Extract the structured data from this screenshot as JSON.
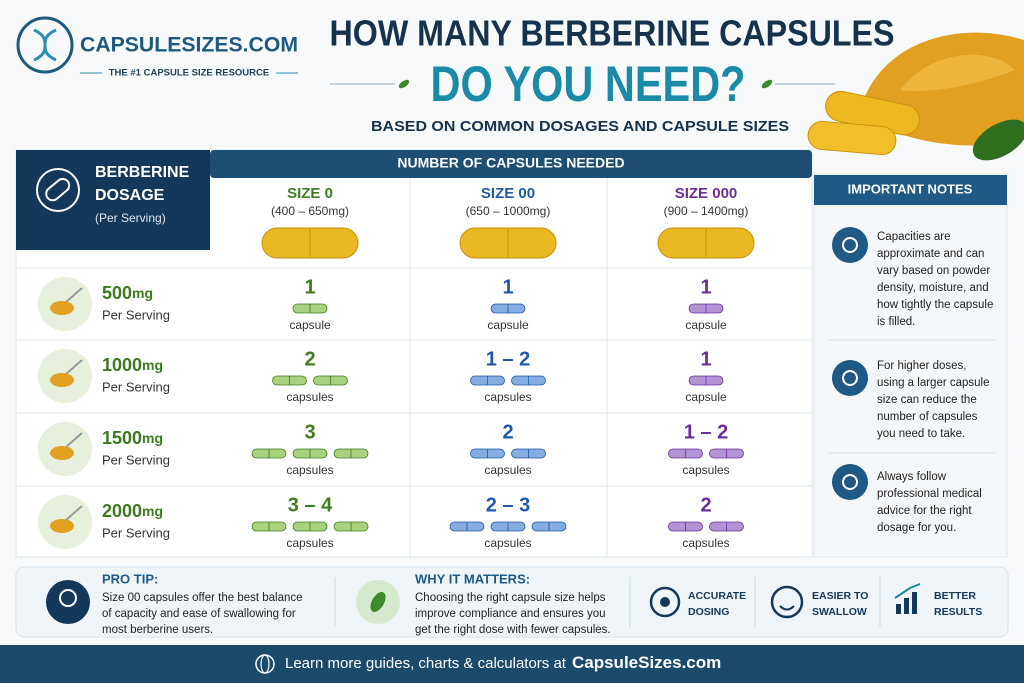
{
  "header": {
    "logo": "CAPSULESIZES.COM",
    "tagline": "THE #1 CAPSULE SIZE RESOURCE",
    "title": [
      "HOW MANY BERBERINE CAPSULES",
      "DO YOU NEED?"
    ],
    "subtitle": "BASED ON COMMON DOSAGES AND CAPSULE SIZES"
  },
  "table": {
    "dosage_header": [
      "BERBERINE",
      "DOSAGE"
    ],
    "dosage_note": "(Per Serving)",
    "group_header": "NUMBER OF CAPSULES NEEDED",
    "columns": [
      {
        "size": "SIZE 0",
        "range": "(400 – 650mg)"
      },
      {
        "size": "SIZE 00",
        "range": "(650 – 1000mg)"
      },
      {
        "size": "SIZE 000",
        "range": "(900 – 1400mg)"
      }
    ],
    "rows": [
      {
        "dose": "500",
        "unit": "mg",
        "note": "Per Serving",
        "cells": [
          {
            "count": "1",
            "label": "capsule"
          },
          {
            "count": "1",
            "label": "capsule"
          },
          {
            "count": "1",
            "label": "capsule"
          }
        ]
      },
      {
        "dose": "1000",
        "unit": "mg",
        "note": "Per Serving",
        "cells": [
          {
            "count": "2",
            "label": "capsules"
          },
          {
            "count": "1 – 2",
            "label": "capsules"
          },
          {
            "count": "1",
            "label": "capsule"
          }
        ]
      },
      {
        "dose": "1500",
        "unit": "mg",
        "note": "Per Serving",
        "cells": [
          {
            "count": "3",
            "label": "capsules"
          },
          {
            "count": "2",
            "label": "capsules"
          },
          {
            "count": "1 – 2",
            "label": "capsules"
          }
        ]
      },
      {
        "dose": "2000",
        "unit": "mg",
        "note": "Per Serving",
        "cells": [
          {
            "count": "3 – 4",
            "label": "capsules"
          },
          {
            "count": "2 – 3",
            "label": "capsules"
          },
          {
            "count": "2",
            "label": "capsules"
          }
        ]
      }
    ]
  },
  "notes": {
    "title": "IMPORTANT NOTES",
    "items": [
      [
        "Capacities are",
        "approximate and can",
        "vary based on powder",
        "density, moisture, and",
        "how tightly the capsule",
        "is filled."
      ],
      [
        "For higher doses,",
        "using a larger capsule",
        "size can reduce the",
        "number of capsules",
        "you need to take."
      ],
      [
        "Always follow",
        "professional medical",
        "advice for the right",
        "dosage for you."
      ]
    ]
  },
  "tips": [
    {
      "title": "PRO TIP:",
      "lines": [
        "Size 00 capsules offer the best balance",
        "of capacity and ease of swallowing for",
        "most berberine users."
      ]
    },
    {
      "title": "WHY IT MATTERS:",
      "lines": [
        "Choosing the right capsule size helps",
        "improve compliance and ensures you",
        "get the right dose with fewer capsules."
      ]
    }
  ],
  "features": [
    [
      "ACCURATE",
      "DOSING"
    ],
    [
      "EASIER TO",
      "SWALLOW"
    ],
    [
      "BETTER",
      "RESULTS"
    ]
  ],
  "footer": {
    "text": "Learn more guides, charts & calculators at",
    "link": "CapsuleSizes.com"
  }
}
